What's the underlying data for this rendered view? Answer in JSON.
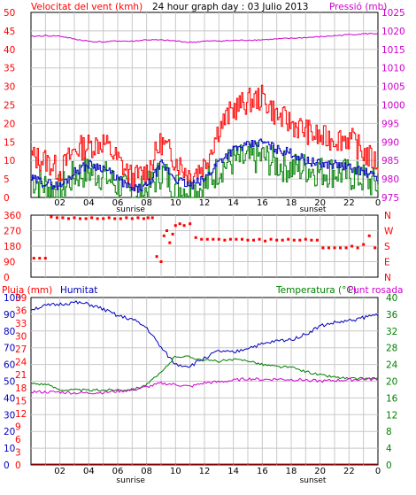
{
  "header": {
    "wind_label": "Velocitat del vent (kmh)",
    "title": "24 hour graph day : 03 Julio 2013",
    "pressure_label": "Pressió (mb)"
  },
  "mid_header": {
    "rain_label": "Pluja (mm)",
    "humidity_label": "Humitat",
    "temp_label": "Temperatura (°C)",
    "dew_label": "Punt rosada"
  },
  "colors": {
    "wind_gust": "#ff0000",
    "wind_avg": "#0000c0",
    "wind_green": "#008000",
    "pressure": "#d000d0",
    "direction": "#ff0000",
    "humidity": "#0000c0",
    "temperature": "#008000",
    "dewpoint": "#d000d0",
    "rain": "#ff0000",
    "grid": "#c8c8c8",
    "frame": "#000000"
  },
  "chart_data": [
    {
      "type": "line",
      "name": "wind-pressure",
      "x_tick_labels": [
        "02",
        "04",
        "06",
        "08",
        "10",
        "12",
        "14",
        "16",
        "18",
        "20",
        "22",
        "0"
      ],
      "sun_labels": {
        "sunrise": "sunrise",
        "sunset": "sunset"
      },
      "y_left_ticks": [
        0,
        5,
        10,
        15,
        20,
        25,
        30,
        35,
        40,
        45,
        50
      ],
      "y_right_ticks": [
        975,
        980,
        985,
        990,
        995,
        1000,
        1005,
        1010,
        1015,
        1020,
        1025
      ],
      "ylim_left": [
        0,
        50
      ],
      "ylim_right": [
        975,
        1025
      ],
      "x": [
        0,
        1,
        2,
        3,
        4,
        5,
        6,
        7,
        8,
        9,
        10,
        11,
        12,
        13,
        14,
        15,
        16,
        17,
        18,
        19,
        20,
        21,
        22,
        23,
        24
      ],
      "series": [
        {
          "values": [
            11,
            10,
            7,
            13,
            14,
            15,
            10,
            5,
            7,
            15,
            10,
            6,
            9,
            19,
            24,
            26,
            27,
            22,
            20,
            18,
            16,
            16,
            16,
            12,
            9
          ]
        },
        {
          "values": [
            5,
            4,
            3,
            7,
            9,
            8,
            5,
            2,
            3,
            9,
            5,
            3,
            5,
            10,
            13,
            14,
            15,
            13,
            12,
            10,
            9,
            9,
            8,
            7,
            5
          ]
        },
        {
          "values": [
            5,
            3,
            2,
            6,
            7,
            6,
            3,
            1,
            2,
            7,
            3,
            2,
            3,
            8,
            10,
            10,
            11,
            9,
            8,
            8,
            7,
            7,
            6,
            5,
            3
          ]
        },
        {
          "values": [
            1018.5,
            1018.7,
            1018.6,
            1017.8,
            1017.2,
            1017.0,
            1017.3,
            1017.2,
            1017.6,
            1017.5,
            1017.3,
            1016.9,
            1017.2,
            1017.3,
            1017.4,
            1017.5,
            1017.6,
            1017.8,
            1018.0,
            1018.2,
            1018.4,
            1018.7,
            1019.0,
            1019.2,
            1019.3
          ]
        }
      ]
    },
    {
      "type": "scatter",
      "name": "wind-direction",
      "y_left_ticks": [
        0,
        90,
        180,
        270,
        360
      ],
      "y_right_ticks": [
        "N",
        "E",
        "S",
        "W",
        "N"
      ],
      "ylim": [
        0,
        360
      ],
      "x": [
        0.2,
        0.6,
        1.0,
        1.4,
        1.8,
        2.2,
        2.6,
        3.0,
        3.4,
        3.8,
        4.2,
        4.6,
        5.0,
        5.4,
        5.8,
        6.2,
        6.6,
        7.0,
        7.4,
        7.8,
        8.1,
        8.4,
        8.7,
        9.0,
        9.2,
        9.4,
        9.6,
        9.8,
        10.0,
        10.3,
        10.6,
        11.0,
        11.4,
        11.8,
        12.2,
        12.6,
        13.0,
        13.4,
        13.8,
        14.2,
        14.6,
        15.0,
        15.4,
        15.8,
        16.2,
        16.6,
        17.0,
        17.4,
        17.8,
        18.2,
        18.6,
        19.0,
        19.4,
        19.8,
        20.2,
        20.6,
        21.0,
        21.4,
        21.8,
        22.2,
        22.6,
        23.0,
        23.4,
        23.8
      ],
      "values": [
        110,
        110,
        110,
        350,
        345,
        345,
        340,
        345,
        340,
        340,
        345,
        340,
        340,
        345,
        340,
        340,
        345,
        340,
        345,
        340,
        345,
        345,
        120,
        90,
        240,
        270,
        200,
        250,
        300,
        310,
        300,
        310,
        230,
        220,
        220,
        220,
        220,
        215,
        220,
        220,
        220,
        215,
        215,
        220,
        210,
        220,
        215,
        215,
        220,
        215,
        215,
        220,
        215,
        215,
        170,
        170,
        170,
        170,
        170,
        180,
        170,
        190,
        240,
        170
      ]
    },
    {
      "type": "line",
      "name": "temp-humidity",
      "y_left_ticks": [
        0,
        10,
        20,
        30,
        40,
        50,
        60,
        70,
        80,
        90,
        100
      ],
      "y_rain_ticks": [
        0,
        3,
        6,
        9,
        12,
        15,
        18,
        21,
        24,
        27,
        30,
        33,
        36,
        39
      ],
      "y_right_ticks": [
        0,
        4,
        8,
        12,
        16,
        20,
        24,
        28,
        32,
        36,
        40
      ],
      "ylim_left": [
        0,
        100
      ],
      "ylim_right": [
        0,
        40
      ],
      "x": [
        0,
        1,
        2,
        3,
        4,
        5,
        6,
        7,
        8,
        9,
        10,
        11,
        12,
        13,
        14,
        15,
        16,
        17,
        18,
        19,
        20,
        21,
        22,
        23,
        24
      ],
      "series": [
        {
          "values": [
            93,
            95,
            96,
            97,
            96,
            93,
            89,
            87,
            82,
            70,
            60,
            59,
            64,
            68,
            67,
            70,
            72,
            74,
            75,
            78,
            83,
            85,
            86,
            88,
            90
          ]
        },
        {
          "values": [
            19.5,
            19.3,
            18.0,
            17.9,
            17.8,
            17.9,
            18.0,
            18.0,
            19.2,
            22.0,
            26.0,
            25.8,
            25.0,
            24.8,
            25.1,
            25.0,
            24.0,
            23.5,
            23.3,
            22.3,
            21.5,
            21.0,
            20.6,
            20.6,
            20.8
          ]
        },
        {
          "values": [
            17.5,
            17.4,
            17.4,
            17.2,
            17.2,
            17.3,
            17.6,
            17.9,
            18.6,
            19.5,
            19.2,
            18.7,
            19.6,
            19.8,
            20.2,
            20.6,
            20.4,
            20.5,
            20.4,
            20.3,
            20.0,
            20.2,
            20.3,
            20.5,
            20.4
          ]
        },
        {
          "values": [
            0,
            0,
            0,
            0,
            0,
            0,
            0,
            0,
            0,
            0,
            0,
            0,
            0,
            0,
            0,
            0,
            0,
            0,
            0,
            0,
            0,
            0,
            0,
            0,
            0
          ]
        }
      ]
    }
  ]
}
